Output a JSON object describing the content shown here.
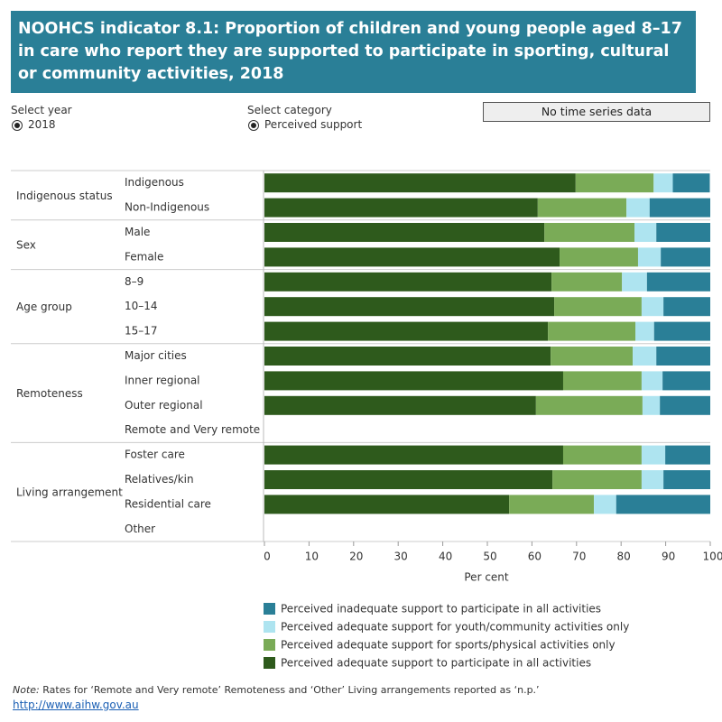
{
  "header": {
    "title": "NOOHCS indicator 8.1: Proportion of children and young people aged 8–17 in care who report they are supported to participate in sporting, cultural or community activities, 2018"
  },
  "controls": {
    "year_label": "Select year",
    "year_value": "2018",
    "category_label": "Select category",
    "category_value": "Perceived support",
    "time_series_note": "No time series data"
  },
  "chart_data": {
    "type": "bar",
    "orientation": "horizontal",
    "stacked": true,
    "groups": [
      {
        "name": "Indigenous status",
        "categories": [
          "Indigenous",
          "Non-Indigenous"
        ]
      },
      {
        "name": "Sex",
        "categories": [
          "Male",
          "Female"
        ]
      },
      {
        "name": "Age group",
        "categories": [
          "8–9",
          "10–14",
          "15–17"
        ]
      },
      {
        "name": "Remoteness",
        "categories": [
          "Major cities",
          "Inner regional",
          "Outer regional",
          "Remote and Very remote"
        ]
      },
      {
        "name": "Living arrangement",
        "categories": [
          "Foster care",
          "Relatives/kin",
          "Residential care",
          "Other"
        ]
      }
    ],
    "series": [
      {
        "name": "Perceived inadequate support to participate in all activities",
        "color": "#2a7f97",
        "values": [
          8.3,
          13.6,
          12.1,
          11.1,
          14.2,
          10.5,
          12.6,
          12.1,
          10.7,
          11.3,
          null,
          10.1,
          10.5,
          21.1,
          null
        ]
      },
      {
        "name": "Perceived adequate support for youth/community activities only",
        "color": "#aee4f0",
        "values": [
          4.3,
          5.2,
          4.9,
          5.1,
          5.6,
          4.9,
          4.2,
          5.3,
          4.7,
          3.9,
          null,
          5.3,
          4.9,
          5.0,
          null
        ]
      },
      {
        "name": "Perceived adequate support for sports/physical activities only",
        "color": "#7aab57",
        "values": [
          17.5,
          19.9,
          20.2,
          17.6,
          15.8,
          19.6,
          19.6,
          18.4,
          17.6,
          23.9,
          null,
          17.6,
          20.0,
          19.0,
          null
        ]
      },
      {
        "name": "Perceived adequate support to participate in all activities",
        "color": "#2e5a1c",
        "values": [
          69.8,
          61.3,
          62.8,
          66.2,
          64.4,
          65.0,
          63.6,
          64.2,
          67.0,
          60.9,
          null,
          67.0,
          64.6,
          54.9,
          null
        ]
      }
    ],
    "xlim": [
      0,
      100
    ],
    "xticks": [
      0,
      10,
      20,
      30,
      40,
      50,
      60,
      70,
      80,
      90,
      100
    ],
    "xlabel": "Per cent"
  },
  "footer": {
    "note_label": "Note:",
    "note_text": "Rates for ‘Remote and Very remote’ Remoteness and ‘Other’ Living arrangements reported as ‘n.p.’",
    "url": "http://www.aihw.gov.au"
  }
}
